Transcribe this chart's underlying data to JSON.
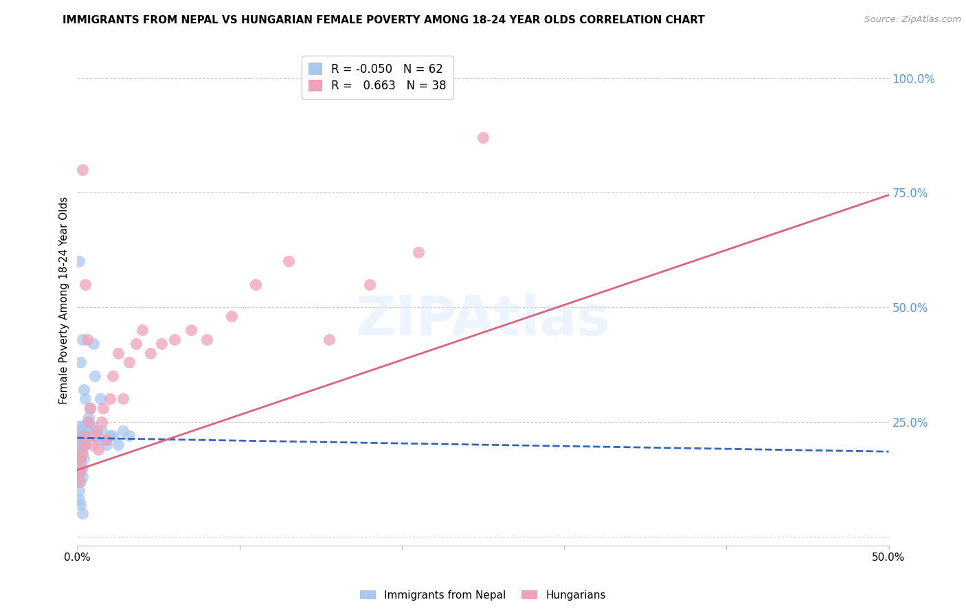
{
  "title": "IMMIGRANTS FROM NEPAL VS HUNGARIAN FEMALE POVERTY AMONG 18-24 YEAR OLDS CORRELATION CHART",
  "source": "Source: ZipAtlas.com",
  "ylabel": "Female Poverty Among 18-24 Year Olds",
  "legend_labels_bottom": [
    "Immigrants from Nepal",
    "Hungarians"
  ],
  "blue_color": "#a8c8f0",
  "pink_color": "#f0a0b8",
  "blue_line_color": "#3366bb",
  "pink_line_color": "#e06080",
  "right_axis_color": "#5599dd",
  "watermark_text": "ZIPAtlas",
  "nepal_x": [
    0.001,
    0.001,
    0.001,
    0.001,
    0.001,
    0.001,
    0.001,
    0.001,
    0.002,
    0.002,
    0.002,
    0.002,
    0.002,
    0.002,
    0.002,
    0.003,
    0.003,
    0.003,
    0.003,
    0.003,
    0.004,
    0.004,
    0.004,
    0.004,
    0.005,
    0.005,
    0.005,
    0.006,
    0.006,
    0.007,
    0.007,
    0.008,
    0.009,
    0.01,
    0.011,
    0.012,
    0.013,
    0.014,
    0.015,
    0.016,
    0.018,
    0.02,
    0.022,
    0.025,
    0.028,
    0.032,
    0.002,
    0.003,
    0.004,
    0.005,
    0.001,
    0.002,
    0.003,
    0.001,
    0.002,
    0.001,
    0.002,
    0.002,
    0.003,
    0.003,
    0.004,
    0.001
  ],
  "nepal_y": [
    0.2,
    0.18,
    0.22,
    0.17,
    0.19,
    0.21,
    0.16,
    0.23,
    0.2,
    0.22,
    0.19,
    0.17,
    0.21,
    0.24,
    0.18,
    0.22,
    0.2,
    0.19,
    0.21,
    0.23,
    0.24,
    0.21,
    0.2,
    0.22,
    0.22,
    0.2,
    0.24,
    0.25,
    0.23,
    0.26,
    0.24,
    0.28,
    0.24,
    0.42,
    0.35,
    0.22,
    0.21,
    0.3,
    0.23,
    0.21,
    0.2,
    0.22,
    0.22,
    0.2,
    0.23,
    0.22,
    0.38,
    0.43,
    0.32,
    0.3,
    0.1,
    0.07,
    0.05,
    0.6,
    0.12,
    0.08,
    0.14,
    0.16,
    0.13,
    0.15,
    0.17,
    0.19
  ],
  "hungarian_x": [
    0.001,
    0.001,
    0.002,
    0.002,
    0.003,
    0.003,
    0.004,
    0.004,
    0.005,
    0.006,
    0.007,
    0.008,
    0.009,
    0.01,
    0.012,
    0.013,
    0.015,
    0.016,
    0.018,
    0.02,
    0.022,
    0.025,
    0.028,
    0.032,
    0.036,
    0.04,
    0.045,
    0.052,
    0.06,
    0.07,
    0.08,
    0.095,
    0.11,
    0.13,
    0.155,
    0.18,
    0.21,
    0.25
  ],
  "hungarian_y": [
    0.14,
    0.12,
    0.17,
    0.15,
    0.8,
    0.18,
    0.22,
    0.2,
    0.55,
    0.43,
    0.25,
    0.28,
    0.2,
    0.22,
    0.23,
    0.19,
    0.25,
    0.28,
    0.21,
    0.3,
    0.35,
    0.4,
    0.3,
    0.38,
    0.42,
    0.45,
    0.4,
    0.42,
    0.43,
    0.45,
    0.43,
    0.48,
    0.55,
    0.6,
    0.43,
    0.55,
    0.62,
    0.87
  ],
  "nepal_trend": [
    -0.05,
    0.215,
    0.185
  ],
  "hungarian_trend": [
    0.663,
    0.145,
    0.745
  ],
  "xlim": [
    0.0,
    0.5
  ],
  "ylim": [
    -0.02,
    1.05
  ],
  "ytick_positions": [
    0.0,
    0.25,
    0.5,
    0.75,
    1.0
  ],
  "yticklabels_right": [
    "",
    "25.0%",
    "50.0%",
    "75.0%",
    "100.0%"
  ],
  "nepal_R": -0.05,
  "nepal_N": 62,
  "hungarian_R": 0.663,
  "hungarian_N": 38,
  "fig_bg": "#ffffff",
  "plot_bg": "#ffffff"
}
